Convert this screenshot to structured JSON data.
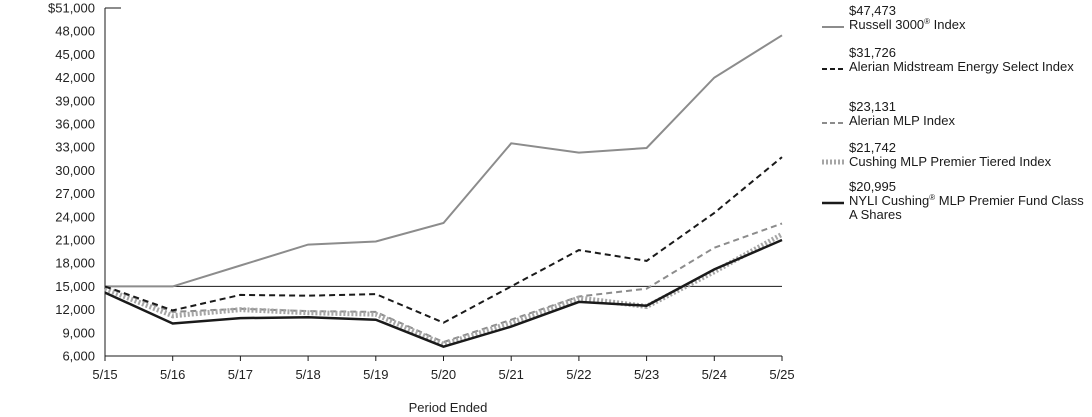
{
  "chart_data": {
    "type": "line",
    "title": "",
    "xlabel": "Period Ended",
    "ylabel": "",
    "categories": [
      "5/15",
      "5/16",
      "5/17",
      "5/18",
      "5/19",
      "5/20",
      "5/21",
      "5/22",
      "5/23",
      "5/24",
      "5/25"
    ],
    "ylim": [
      6000,
      51000
    ],
    "y_ticks": [
      6000,
      9000,
      12000,
      15000,
      18000,
      21000,
      24000,
      27000,
      30000,
      33000,
      36000,
      39000,
      42000,
      45000,
      48000,
      51000
    ],
    "y_tick_labels": [
      "6,000",
      "9,000",
      "12,000",
      "15,000",
      "18,000",
      "21,000",
      "24,000",
      "27,000",
      "30,000",
      "33,000",
      "36,000",
      "39,000",
      "42,000",
      "45,000",
      "48,000",
      "$51,000"
    ],
    "reference_line": 15000,
    "grid": false,
    "legend_position": "right",
    "series": [
      {
        "name": "Russell 3000® Index",
        "end_value": "$47,473",
        "color": "#8c8c8c",
        "style": "solid",
        "values": [
          15000,
          15000,
          17700,
          20400,
          20800,
          23200,
          33500,
          32300,
          32900,
          42000,
          47473
        ]
      },
      {
        "name": "Alerian Midstream Energy Select Index",
        "end_value": "$31,726",
        "color": "#1a1a1a",
        "style": "dashed",
        "values": [
          15000,
          11900,
          13900,
          13800,
          14000,
          10300,
          15000,
          19700,
          18300,
          24500,
          31726
        ]
      },
      {
        "name": "Alerian MLP Index",
        "end_value": "$23,131",
        "color": "#8c8c8c",
        "style": "dashed",
        "values": [
          15000,
          11700,
          12100,
          11800,
          11700,
          7800,
          10700,
          13700,
          14700,
          20000,
          23131
        ]
      },
      {
        "name": "Cushing MLP Premier Tiered Index",
        "end_value": "$21,742",
        "color": "#a6a6a6",
        "style": "dotted",
        "values": [
          14700,
          11200,
          12000,
          11600,
          11400,
          7500,
          10300,
          13500,
          12400,
          16900,
          21742
        ]
      },
      {
        "name": "NYLI Cushing® MLP Premier Fund Class A Shares",
        "end_value": "$20,995",
        "color": "#1a1a1a",
        "style": "solid",
        "values": [
          14200,
          10200,
          10900,
          11000,
          10700,
          7200,
          9800,
          13000,
          12500,
          17200,
          20995
        ]
      }
    ]
  }
}
